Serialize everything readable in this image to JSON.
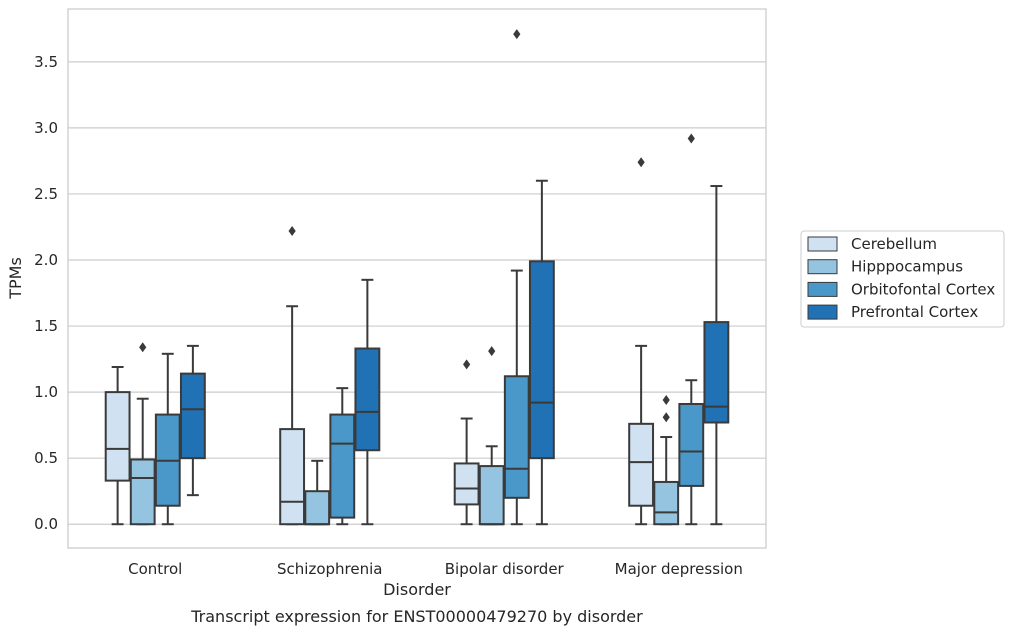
{
  "caption": "Transcript expression for ENST00000479270 by disorder",
  "chart_data": {
    "type": "box",
    "xlabel": "Disorder",
    "ylabel": "TPMs",
    "ylim": [
      -0.18,
      3.9
    ],
    "yticks": [
      0.0,
      0.5,
      1.0,
      1.5,
      2.0,
      2.5,
      3.0,
      3.5
    ],
    "ytick_labels": [
      "0.0",
      "0.5",
      "1.0",
      "1.5",
      "2.0",
      "2.5",
      "3.0",
      "3.5"
    ],
    "grid": "horizontal",
    "legend_position": "right",
    "categories": [
      "Control",
      "Schizophrenia",
      "Bipolar disorder",
      "Major depression"
    ],
    "series": [
      {
        "name": "Cerebellum",
        "color": "#d0e1f2",
        "boxes": [
          {
            "whislo": 0.0,
            "q1": 0.33,
            "med": 0.57,
            "q3": 1.0,
            "whishi": 1.19,
            "fliers": []
          },
          {
            "whislo": 0.0,
            "q1": 0.0,
            "med": 0.17,
            "q3": 0.72,
            "whishi": 1.65,
            "fliers": [
              2.22
            ]
          },
          {
            "whislo": 0.0,
            "q1": 0.15,
            "med": 0.27,
            "q3": 0.46,
            "whishi": 0.8,
            "fliers": [
              1.21
            ]
          },
          {
            "whislo": 0.0,
            "q1": 0.14,
            "med": 0.47,
            "q3": 0.76,
            "whishi": 1.35,
            "fliers": [
              2.74
            ]
          }
        ]
      },
      {
        "name": "Hipppocampus",
        "color": "#94c4df",
        "boxes": [
          {
            "whislo": 0.0,
            "q1": 0.0,
            "med": 0.35,
            "q3": 0.49,
            "whishi": 0.95,
            "fliers": [
              1.34
            ]
          },
          {
            "whislo": 0.0,
            "q1": 0.0,
            "med": 0.0,
            "q3": 0.25,
            "whishi": 0.48,
            "fliers": []
          },
          {
            "whislo": 0.0,
            "q1": 0.0,
            "med": 0.0,
            "q3": 0.44,
            "whishi": 0.59,
            "fliers": [
              1.31
            ]
          },
          {
            "whislo": 0.0,
            "q1": 0.0,
            "med": 0.09,
            "q3": 0.32,
            "whishi": 0.66,
            "fliers": [
              0.81,
              0.94
            ]
          }
        ]
      },
      {
        "name": "Orbitofontal Cortex",
        "color": "#4a98c9",
        "boxes": [
          {
            "whislo": 0.0,
            "q1": 0.14,
            "med": 0.48,
            "q3": 0.83,
            "whishi": 1.29,
            "fliers": []
          },
          {
            "whislo": 0.0,
            "q1": 0.05,
            "med": 0.61,
            "q3": 0.83,
            "whishi": 1.03,
            "fliers": []
          },
          {
            "whislo": 0.0,
            "q1": 0.2,
            "med": 0.42,
            "q3": 1.12,
            "whishi": 1.92,
            "fliers": [
              3.71
            ]
          },
          {
            "whislo": 0.0,
            "q1": 0.29,
            "med": 0.55,
            "q3": 0.91,
            "whishi": 1.09,
            "fliers": [
              2.92
            ]
          }
        ]
      },
      {
        "name": "Prefrontal Cortex",
        "color": "#2171b5",
        "boxes": [
          {
            "whislo": 0.22,
            "q1": 0.5,
            "med": 0.87,
            "q3": 1.14,
            "whishi": 1.35,
            "fliers": []
          },
          {
            "whislo": 0.0,
            "q1": 0.56,
            "med": 0.85,
            "q3": 1.33,
            "whishi": 1.85,
            "fliers": []
          },
          {
            "whislo": 0.0,
            "q1": 0.5,
            "med": 0.92,
            "q3": 1.99,
            "whishi": 2.6,
            "fliers": []
          },
          {
            "whislo": 0.0,
            "q1": 0.77,
            "med": 0.89,
            "q3": 1.53,
            "whishi": 2.56,
            "fliers": []
          }
        ]
      }
    ]
  }
}
